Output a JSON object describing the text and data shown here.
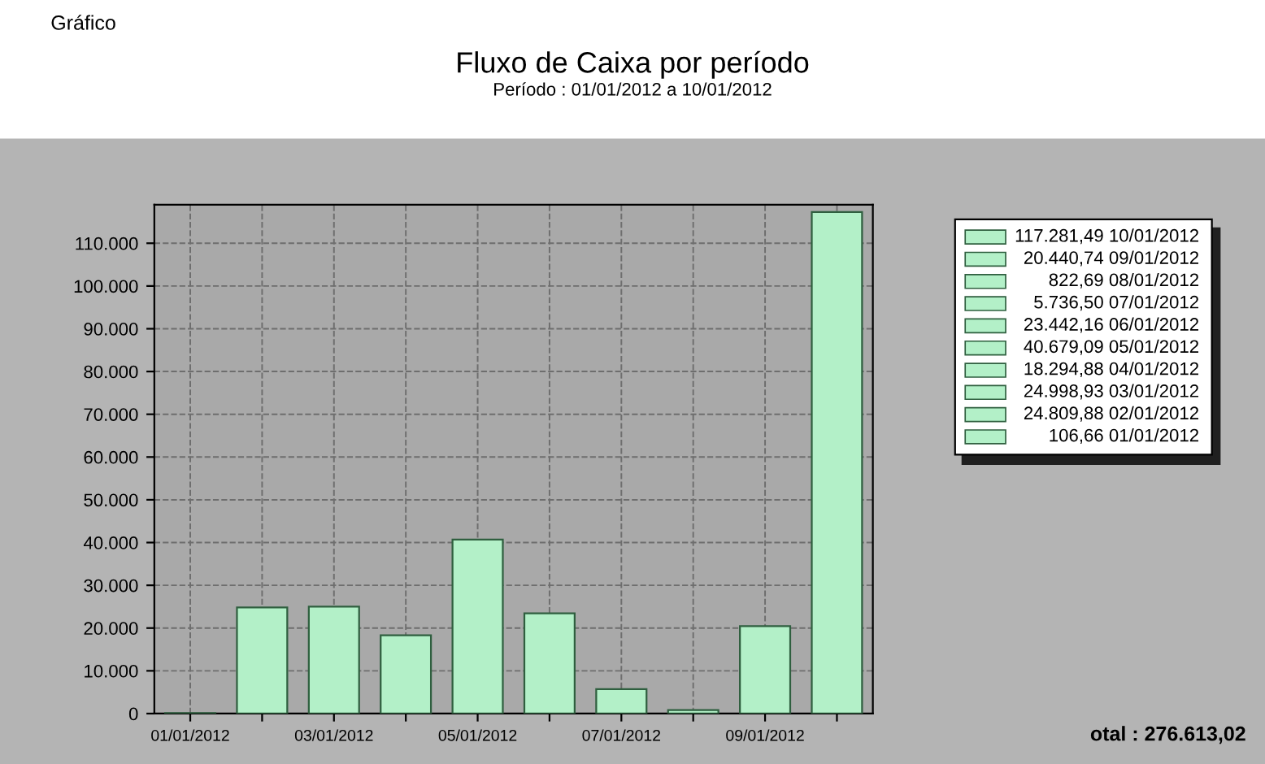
{
  "chart_data": {
    "type": "bar",
    "title": "Fluxo de Caixa por período",
    "subtitle": "Período : 01/01/2012 a 10/01/2012",
    "categories": [
      "01/01/2012",
      null,
      "03/01/2012",
      null,
      "05/01/2012",
      null,
      "07/01/2012",
      null,
      "09/01/2012",
      null
    ],
    "values": [
      106.66,
      24809.88,
      24998.93,
      18294.88,
      40679.09,
      23442.16,
      5736.5,
      822.69,
      20440.74,
      117281.49
    ],
    "color": "#b3f0c8",
    "ylim": [
      0,
      119000
    ],
    "yticks": [
      {
        "value": 0,
        "label": "0"
      },
      {
        "value": 10000,
        "label": "10.000"
      },
      {
        "value": 20000,
        "label": "20.000"
      },
      {
        "value": 30000,
        "label": "30.000"
      },
      {
        "value": 40000,
        "label": "40.000"
      },
      {
        "value": 50000,
        "label": "50.000"
      },
      {
        "value": 60000,
        "label": "60.000"
      },
      {
        "value": 70000,
        "label": "70.000"
      },
      {
        "value": 80000,
        "label": "80.000"
      },
      {
        "value": 90000,
        "label": "90.000"
      },
      {
        "value": 100000,
        "label": "100.000"
      },
      {
        "value": 110000,
        "label": "110.000"
      }
    ],
    "grid": true,
    "annotations": [
      "117.281,49 10/01/2012",
      "20.440,74 09/01/2012",
      "822,69 08/01/2012",
      "5.736,50 07/01/2012",
      "23.442,16 06/01/2012",
      "40.679,09 05/01/2012",
      "18.294,88 04/01/2012",
      "24.998,93 03/01/2012",
      "24.809,88 02/01/2012",
      "106,66 01/01/2012",
      "otal : 276.613,02",
      "Gráfico"
    ]
  }
}
